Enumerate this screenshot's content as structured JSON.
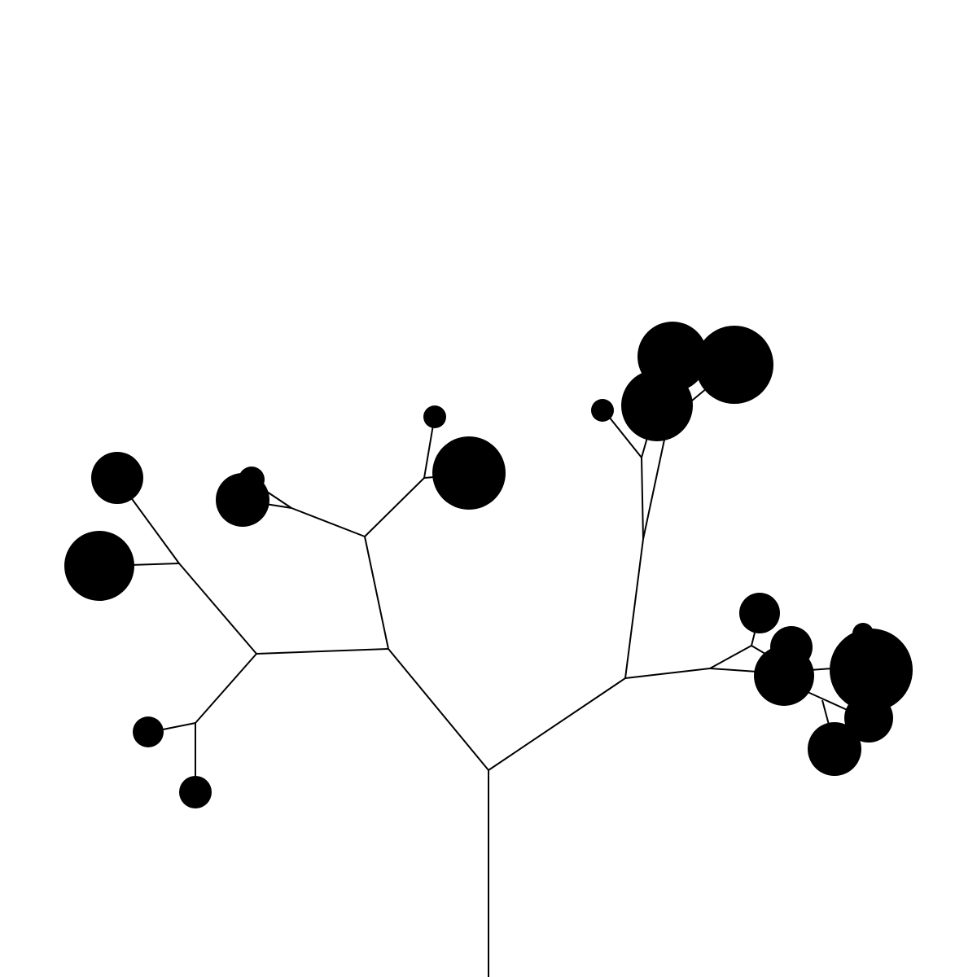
{
  "image": {
    "subject": "branching-tree",
    "background_color": "#ffffff",
    "ink_color": "#000000"
  }
}
